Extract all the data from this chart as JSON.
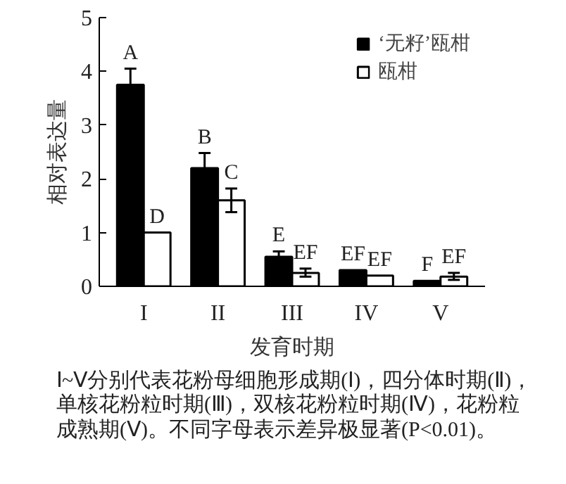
{
  "chart_data": {
    "type": "bar",
    "ylabel": "相对表达量",
    "xlabel": "发育时期",
    "categories": [
      "I",
      "II",
      "III",
      "IV",
      "V"
    ],
    "ylim": [
      0,
      5
    ],
    "yticks": [
      0,
      1,
      2,
      3,
      4,
      5
    ],
    "legend": "top right",
    "grid": false,
    "series": [
      {
        "name": "‘无籽’瓯柑",
        "color": "#000000",
        "values": [
          3.75,
          2.2,
          0.55,
          0.3,
          0.1
        ],
        "errors": [
          [
            3.75,
            4.05
          ],
          [
            2.2,
            2.48
          ],
          [
            0.55,
            0.65
          ],
          null,
          null
        ]
      },
      {
        "name": "瓯柑",
        "color": "#ffffff",
        "values": [
          1.0,
          1.6,
          0.25,
          0.2,
          0.18
        ],
        "errors": [
          null,
          [
            1.38,
            1.82
          ],
          [
            0.18,
            0.33
          ],
          null,
          [
            0.12,
            0.25
          ]
        ]
      }
    ],
    "annotations": [
      {
        "text": "A",
        "x": "I",
        "y": 3.75
      },
      {
        "text": "D",
        "x": "I",
        "y": 1.0
      },
      {
        "text": "B",
        "x": "II",
        "y": 2.2
      },
      {
        "text": "C",
        "x": "II",
        "y": 1.6
      },
      {
        "text": "E",
        "x": "III",
        "y": 0.55
      },
      {
        "text": "EF",
        "x": "III",
        "y": 0.25
      },
      {
        "text": "EF",
        "x": "IV",
        "y": 0.3
      },
      {
        "text": "EF",
        "x": "IV",
        "y": 0.2
      },
      {
        "text": "F",
        "x": "V",
        "y": 0.1
      },
      {
        "text": "EF",
        "x": "V",
        "y": 0.18
      },
      "Ⅰ~Ⅴ分别代表花粉母细胞形成期(Ⅰ)，四分体时期(Ⅱ)，单核花粉粒时期(Ⅲ)，双核花粉粒时期(Ⅳ)，花粉粒成熟期(Ⅴ)。不同字母表示差异极显著(P<0.01)。"
    ]
  }
}
